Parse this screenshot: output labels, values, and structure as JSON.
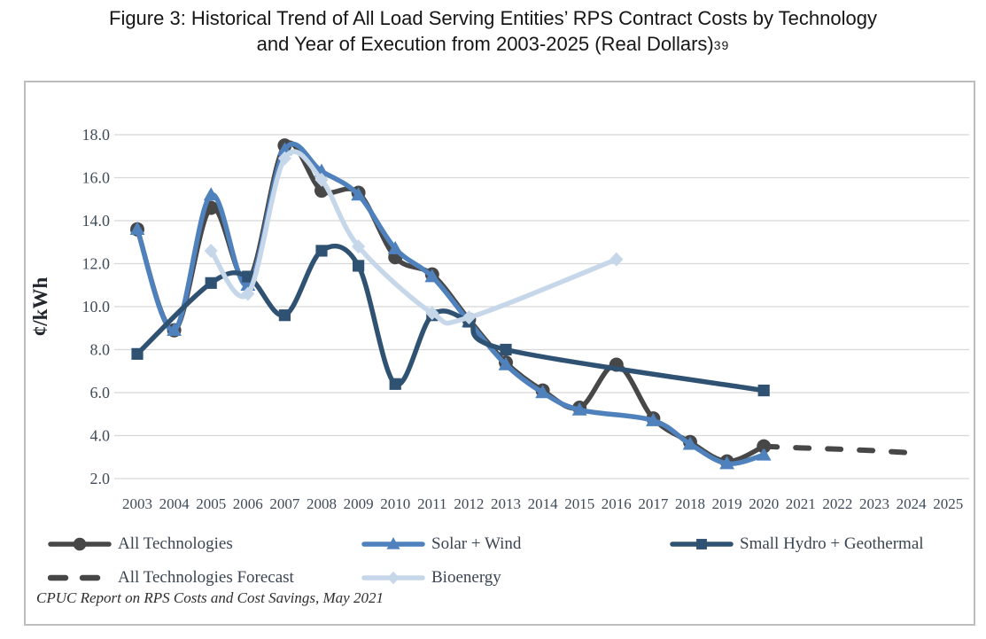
{
  "title": {
    "line1": "Figure 3: Historical Trend of All Load Serving Entities’ RPS Contract Costs by Technology",
    "line2": "and Year of Execution from 2003-2025 (Real Dollars)",
    "footnote": "39"
  },
  "source_note": "CPUC Report on RPS Costs and Cost Savings, May 2021",
  "colors": {
    "all_technologies": "#474747",
    "solar_wind": "#4f81bd",
    "small_hydro_geothermal": "#2f5273",
    "forecast": "#474747",
    "bioenergy": "#c7d7ea",
    "gridline": "#d8d8d8",
    "axis_text": "#3f4b58",
    "box_border": "#bdbdbd"
  },
  "chart_data": {
    "type": "line",
    "title": "Figure 3: Historical Trend of All Load Serving Entities’ RPS Contract Costs by Technology and Year of Execution from 2003-2025 (Real Dollars)",
    "xlabel": "",
    "ylabel": "¢/kWh",
    "ylim": [
      2.0,
      18.0
    ],
    "ytick_step": 2.0,
    "grid": "horizontal",
    "legend_position": "bottom",
    "x_years": [
      2003,
      2004,
      2005,
      2006,
      2007,
      2008,
      2009,
      2010,
      2011,
      2012,
      2013,
      2014,
      2015,
      2016,
      2017,
      2018,
      2019,
      2020,
      2021,
      2022,
      2023,
      2024,
      2025
    ],
    "series": [
      {
        "name": "All Technologies",
        "color": "#474747",
        "marker": "circle",
        "line": "solid",
        "points": [
          [
            2003,
            13.6
          ],
          [
            2004,
            8.9
          ],
          [
            2005,
            14.6
          ],
          [
            2006,
            11.2
          ],
          [
            2007,
            17.5
          ],
          [
            2008,
            15.4
          ],
          [
            2009,
            15.3
          ],
          [
            2010,
            12.3
          ],
          [
            2011,
            11.5
          ],
          [
            2012,
            9.4
          ],
          [
            2013,
            7.4
          ],
          [
            2014,
            6.1
          ],
          [
            2015,
            5.3
          ],
          [
            2016,
            7.3
          ],
          [
            2017,
            4.8
          ],
          [
            2018,
            3.7
          ],
          [
            2019,
            2.8
          ],
          [
            2020,
            3.5
          ]
        ]
      },
      {
        "name": "Solar + Wind",
        "color": "#4f81bd",
        "marker": "triangle",
        "line": "solid",
        "points": [
          [
            2003,
            13.6
          ],
          [
            2004,
            8.9
          ],
          [
            2005,
            15.2
          ],
          [
            2006,
            11.0
          ],
          [
            2007,
            17.3
          ],
          [
            2008,
            16.3
          ],
          [
            2009,
            15.2
          ],
          [
            2010,
            12.7
          ],
          [
            2011,
            11.4
          ],
          [
            2012,
            9.3
          ],
          [
            2013,
            7.3
          ],
          [
            2014,
            6.0
          ],
          [
            2015,
            5.2
          ],
          [
            2017,
            4.7
          ],
          [
            2018,
            3.6
          ],
          [
            2019,
            2.7
          ],
          [
            2020,
            3.1
          ]
        ]
      },
      {
        "name": "Small Hydro + Geothermal",
        "color": "#2f5273",
        "marker": "square",
        "line": "solid",
        "points": [
          [
            2003,
            7.8
          ],
          [
            2005,
            11.1
          ],
          [
            2006,
            11.4
          ],
          [
            2007,
            9.6
          ],
          [
            2008,
            12.6
          ],
          [
            2009,
            11.9
          ],
          [
            2010,
            6.4
          ],
          [
            2011,
            9.6
          ],
          [
            2012,
            9.3
          ],
          [
            2013,
            8.0
          ],
          [
            2020,
            6.1
          ]
        ]
      },
      {
        "name": "All Technologies Forecast",
        "color": "#474747",
        "marker": "none",
        "line": "dashed",
        "points": [
          [
            2020,
            3.5
          ],
          [
            2021,
            3.43
          ],
          [
            2022,
            3.37
          ],
          [
            2023,
            3.3
          ],
          [
            2024,
            3.2
          ]
        ]
      },
      {
        "name": "Bioenergy",
        "color": "#c7d7ea",
        "marker": "diamond",
        "line": "solid",
        "points": [
          [
            2005,
            12.6
          ],
          [
            2006,
            10.6
          ],
          [
            2007,
            16.9
          ],
          [
            2008,
            15.9
          ],
          [
            2009,
            12.8
          ],
          [
            2011,
            9.7
          ],
          [
            2012,
            9.5
          ],
          [
            2016,
            12.2
          ]
        ]
      }
    ],
    "legend_rows": [
      [
        "All Technologies",
        "Solar + Wind",
        "Small Hydro + Geothermal"
      ],
      [
        "All Technologies Forecast",
        "Bioenergy"
      ]
    ]
  }
}
